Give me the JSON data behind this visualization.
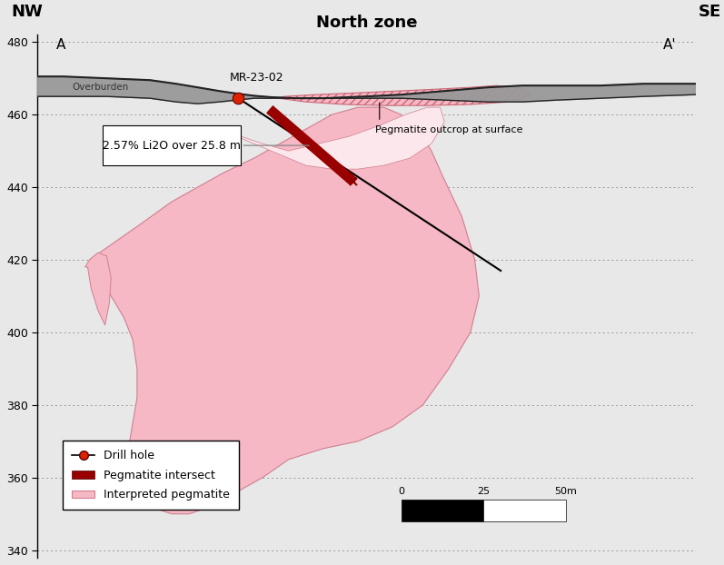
{
  "title": "North zone",
  "nw_label": "NW",
  "se_label": "SE",
  "a_label": "A",
  "aprime_label": "A'",
  "ylim": [
    338,
    482
  ],
  "xlim": [
    0,
    760
  ],
  "yticks": [
    340,
    360,
    380,
    400,
    420,
    440,
    460,
    480
  ],
  "bg_color": "#e8e8e8",
  "plot_bg_color": "#e8e8e8",
  "overburden_color": "#999999",
  "overburden_edge": "#222222",
  "pegmatite_fill": "#f5b8c4",
  "pegmatite_edge": "#d08090",
  "pegmatite_hatch_fill": "#f5b8c4",
  "pegmatite_hatch_edge": "#cc6677",
  "intersection_color": "#990000",
  "collar_color": "#dd2200",
  "grid_color": "#999999",
  "annotation_text": "2.57% Li2O over 25.8 m",
  "outcrop_text": "Pegmatite outcrop at surface",
  "drillhole_label": "MR-23-02",
  "white_bg": "#ffffff",
  "light_bg": "#e8e8e8"
}
